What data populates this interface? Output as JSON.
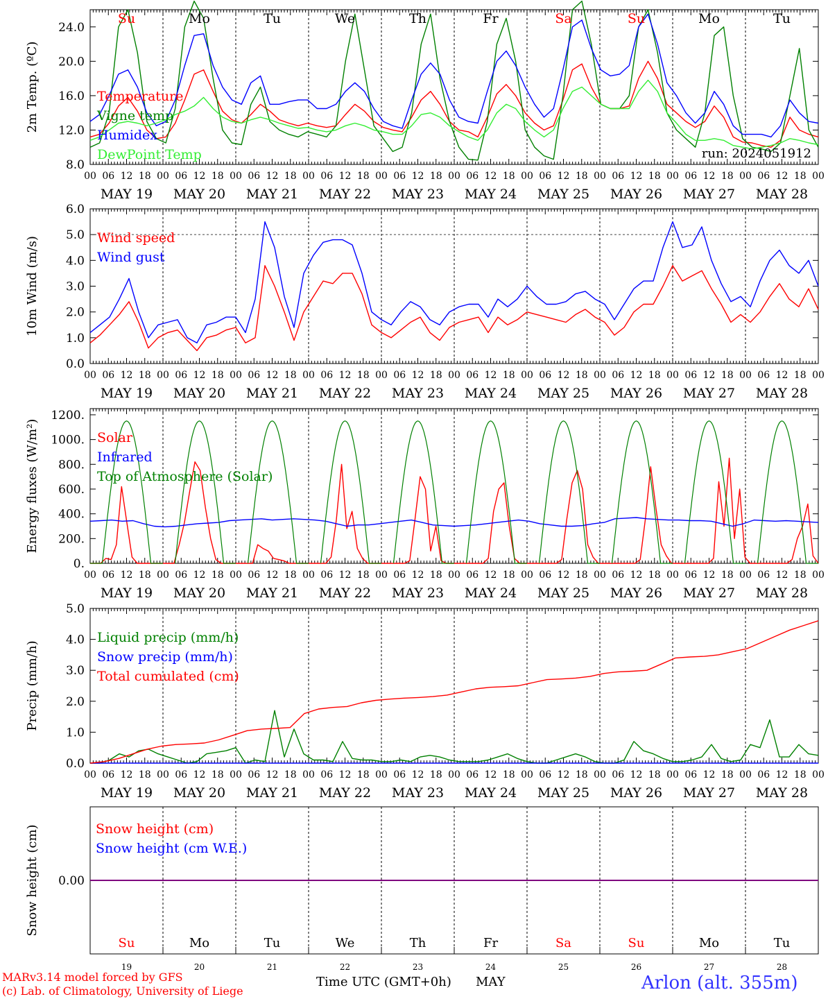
{
  "page": {
    "credit_line1": "MARv3.14 model forced by GFS",
    "credit_line2": "(c) Lab. of Climatology, University of Liege",
    "xaxis_title": "Time UTC (GMT+0h)",
    "month_label": "MAY",
    "station_label": "Arlon (alt. 355m)"
  },
  "colors": {
    "red": "#ff0000",
    "dark_green": "#008000",
    "light_green": "#33ee33",
    "blue": "#0000ff",
    "purple": "#7f007f",
    "axis": "#000000"
  },
  "time_axis": {
    "hour_ticks": [
      "00",
      "06",
      "12",
      "18"
    ],
    "final_tick": "00",
    "date_labels": [
      "MAY 19",
      "MAY 20",
      "MAY 21",
      "MAY 22",
      "MAY 23",
      "MAY 24",
      "MAY 25",
      "MAY 26",
      "MAY 27",
      "MAY 28"
    ],
    "day_names": [
      "Su",
      "Mo",
      "Tu",
      "We",
      "Th",
      "Fr",
      "Sa",
      "Su",
      "Mo",
      "Tu"
    ],
    "day_numbers": [
      "19",
      "20",
      "21",
      "22",
      "23",
      "24",
      "25",
      "26",
      "27",
      "28"
    ],
    "weekend": [
      true,
      false,
      false,
      false,
      false,
      false,
      true,
      true,
      false,
      false
    ]
  },
  "chart_data": [
    {
      "type": "line",
      "ylabel": "2m Temp. (ºC)",
      "ylim": [
        8,
        26
      ],
      "yticks": [
        "8.0",
        "12.0",
        "16.0",
        "20.0",
        "24.0"
      ],
      "annotation": "run: 2024051912",
      "series": [
        {
          "name": "Temperature",
          "color": "red",
          "values": [
            11.2,
            11.5,
            12.8,
            14.8,
            15.8,
            14.2,
            12.0,
            11.0,
            11.2,
            12.8,
            15.5,
            18.5,
            19.0,
            16.5,
            14.2,
            13.2,
            12.8,
            13.8,
            15.0,
            14.2,
            13.2,
            12.8,
            12.5,
            12.8,
            12.5,
            12.3,
            12.5,
            13.8,
            15.0,
            14.2,
            13.0,
            12.3,
            12.0,
            11.8,
            13.5,
            15.5,
            16.5,
            15.0,
            13.0,
            12.0,
            11.8,
            11.2,
            13.5,
            16.2,
            17.3,
            16.0,
            14.0,
            12.8,
            12.0,
            12.5,
            15.5,
            19.0,
            19.7,
            17.0,
            15.0,
            14.5,
            14.5,
            14.8,
            18.0,
            20.0,
            18.0,
            15.0,
            14.0,
            13.0,
            12.3,
            13.0,
            14.8,
            13.5,
            11.2,
            10.6,
            10.5,
            10.2,
            10.0,
            10.8,
            13.5,
            12.0,
            11.5,
            11.2
          ]
        },
        {
          "name": "Vigne temp",
          "color": "dark_green",
          "values": [
            10.0,
            10.5,
            14.0,
            24.0,
            26.0,
            21.0,
            13.0,
            11.0,
            10.5,
            14.5,
            24.0,
            27.0,
            25.0,
            18.0,
            12.0,
            10.5,
            10.3,
            15.0,
            17.0,
            13.0,
            12.0,
            11.5,
            11.2,
            11.8,
            11.5,
            11.2,
            12.5,
            20.0,
            25.5,
            19.0,
            12.5,
            11.0,
            9.5,
            10.0,
            14.0,
            22.0,
            25.5,
            18.0,
            13.0,
            10.0,
            8.6,
            8.5,
            13.0,
            22.0,
            25.0,
            20.0,
            12.0,
            10.0,
            9.0,
            8.6,
            16.0,
            26.0,
            27.0,
            22.0,
            15.0,
            14.5,
            14.5,
            16.0,
            24.0,
            26.0,
            21.0,
            14.0,
            12.0,
            11.0,
            10.0,
            14.0,
            23.0,
            24.0,
            16.0,
            11.0,
            10.0,
            9.8,
            9.5,
            10.5,
            16.0,
            21.5,
            12.0,
            10.0
          ]
        },
        {
          "name": "Humidex",
          "color": "blue",
          "values": [
            13.0,
            13.8,
            16.0,
            18.5,
            19.0,
            17.0,
            14.0,
            12.5,
            13.0,
            15.5,
            19.5,
            23.0,
            23.2,
            19.5,
            17.0,
            15.5,
            15.0,
            17.5,
            18.3,
            15.0,
            15.0,
            15.3,
            15.5,
            15.5,
            14.5,
            14.5,
            15.0,
            16.5,
            17.5,
            16.5,
            14.5,
            13.0,
            12.5,
            12.2,
            15.5,
            18.5,
            19.8,
            18.5,
            15.5,
            13.5,
            13.0,
            12.8,
            16.5,
            20.0,
            21.2,
            19.5,
            17.0,
            15.0,
            13.5,
            14.5,
            19.0,
            24.0,
            24.8,
            21.5,
            19.0,
            18.3,
            18.5,
            19.5,
            24.0,
            25.5,
            22.0,
            17.5,
            16.0,
            14.0,
            12.8,
            14.0,
            16.5,
            15.0,
            12.5,
            11.5,
            11.5,
            11.5,
            11.2,
            12.5,
            15.5,
            14.0,
            13.0,
            12.8
          ]
        },
        {
          "name": "DewPoint Temp",
          "color": "light_green",
          "values": [
            10.8,
            11.2,
            12.0,
            12.8,
            13.0,
            12.8,
            12.5,
            12.8,
            13.2,
            13.8,
            14.2,
            14.8,
            15.8,
            14.5,
            13.5,
            13.0,
            12.8,
            13.2,
            13.5,
            13.2,
            12.8,
            12.5,
            12.2,
            12.3,
            12.0,
            11.8,
            12.0,
            12.5,
            12.8,
            12.5,
            12.0,
            11.8,
            11.5,
            11.5,
            12.5,
            13.8,
            14.0,
            13.5,
            12.5,
            11.8,
            11.2,
            10.8,
            12.0,
            14.0,
            15.0,
            14.5,
            13.0,
            12.0,
            11.2,
            12.0,
            14.5,
            16.5,
            17.0,
            16.0,
            15.0,
            14.5,
            14.5,
            14.5,
            16.5,
            17.8,
            16.5,
            14.0,
            12.8,
            11.5,
            10.8,
            10.8,
            11.0,
            10.8,
            10.2,
            10.0,
            9.8,
            10.0,
            10.2,
            10.5,
            11.0,
            10.8,
            10.5,
            10.3
          ]
        }
      ]
    },
    {
      "type": "line",
      "ylabel": "10m Wind (m/s)",
      "ylim": [
        0,
        6
      ],
      "yticks": [
        "0.0",
        "1.0",
        "2.0",
        "3.0",
        "4.0",
        "5.0",
        "6.0"
      ],
      "reference_line": 5,
      "series": [
        {
          "name": "Wind speed",
          "color": "red",
          "values": [
            0.8,
            1.1,
            1.5,
            1.9,
            2.4,
            1.6,
            0.6,
            1.0,
            1.2,
            1.3,
            0.9,
            0.5,
            1.0,
            1.1,
            1.3,
            1.4,
            0.8,
            1.0,
            3.8,
            3.0,
            2.0,
            0.9,
            2.0,
            2.6,
            3.2,
            3.1,
            3.5,
            3.5,
            2.7,
            1.5,
            1.2,
            1.0,
            1.3,
            1.6,
            1.8,
            1.2,
            0.9,
            1.4,
            1.6,
            1.7,
            1.8,
            1.2,
            1.8,
            1.5,
            1.7,
            2.0,
            1.9,
            1.8,
            1.7,
            1.6,
            1.9,
            2.1,
            1.8,
            1.6,
            1.1,
            1.4,
            2.0,
            2.3,
            2.3,
            3.0,
            3.8,
            3.2,
            3.4,
            3.6,
            2.9,
            2.3,
            1.6,
            1.9,
            1.6,
            2.0,
            2.6,
            3.1,
            2.5,
            2.2,
            2.9,
            2.1
          ]
        },
        {
          "name": "Wind gust",
          "color": "blue",
          "values": [
            1.2,
            1.5,
            1.8,
            2.5,
            3.3,
            2.0,
            1.0,
            1.5,
            1.6,
            1.7,
            1.0,
            0.8,
            1.5,
            1.6,
            1.8,
            1.8,
            1.2,
            2.5,
            5.5,
            4.5,
            2.6,
            1.4,
            3.5,
            4.2,
            4.7,
            4.8,
            4.8,
            4.6,
            3.5,
            2.0,
            1.7,
            1.5,
            2.0,
            2.4,
            2.2,
            1.7,
            1.5,
            2.0,
            2.2,
            2.3,
            2.3,
            1.8,
            2.5,
            2.2,
            2.5,
            3.0,
            2.6,
            2.3,
            2.3,
            2.4,
            2.7,
            2.8,
            2.5,
            2.3,
            1.7,
            2.3,
            2.9,
            3.2,
            3.2,
            4.5,
            5.5,
            4.5,
            4.6,
            5.3,
            4.0,
            3.1,
            2.4,
            2.6,
            2.2,
            3.2,
            4.0,
            4.4,
            3.8,
            3.5,
            4.0,
            3.0
          ]
        }
      ]
    },
    {
      "type": "line",
      "ylabel": "Energy fluxes (W/m²)",
      "ylim": [
        0,
        1250
      ],
      "yticks": [
        "0.",
        "200.",
        "400.",
        "600.",
        "800.",
        "1000.",
        "1200."
      ],
      "series": [
        {
          "name": "Solar",
          "color": "red",
          "values": [
            0,
            0,
            0,
            40,
            30,
            150,
            620,
            330,
            50,
            0,
            0,
            0,
            0,
            0,
            0,
            0,
            0,
            150,
            330,
            580,
            820,
            750,
            450,
            200,
            30,
            0,
            0,
            0,
            0,
            0,
            0,
            0,
            150,
            120,
            100,
            40,
            30,
            20,
            0,
            0,
            0,
            0,
            0,
            0,
            0,
            0,
            50,
            350,
            800,
            280,
            420,
            120,
            40,
            0,
            0,
            0,
            0,
            0,
            0,
            0,
            0,
            20,
            350,
            700,
            600,
            100,
            300,
            20,
            0,
            0,
            0,
            0,
            0,
            0,
            0,
            0,
            40,
            420,
            600,
            650,
            300,
            40,
            0,
            0,
            0,
            0,
            0,
            0,
            0,
            0,
            30,
            360,
            650,
            750,
            600,
            150,
            50,
            0,
            0,
            0,
            0,
            0,
            0,
            0,
            0,
            30,
            360,
            780,
            450,
            150,
            60,
            0,
            0,
            0,
            0,
            0,
            0,
            0,
            0,
            40,
            660,
            300,
            850,
            200,
            600,
            50,
            0,
            0,
            0,
            0,
            0,
            0,
            0,
            0,
            30,
            200,
            300,
            480,
            60,
            0
          ]
        },
        {
          "name": "Infrared",
          "color": "blue",
          "values": [
            340,
            345,
            350,
            340,
            345,
            320,
            300,
            295,
            300,
            310,
            320,
            325,
            330,
            345,
            350,
            355,
            360,
            350,
            355,
            360,
            355,
            350,
            340,
            320,
            300,
            310,
            310,
            320,
            330,
            340,
            350,
            330,
            310,
            305,
            300,
            305,
            310,
            320,
            330,
            340,
            350,
            340,
            320,
            310,
            300,
            300,
            305,
            320,
            330,
            360,
            365,
            370,
            360,
            355,
            350,
            350,
            345,
            345,
            340,
            320,
            300,
            320,
            350,
            345,
            340,
            345,
            340,
            335,
            330
          ]
        },
        {
          "name": "Top of Atmosphere (Solar)",
          "color": "dark_green",
          "values": [
            1150,
            1150,
            1150,
            1150,
            1150,
            1150,
            1150,
            1150,
            1150,
            1150
          ]
        }
      ]
    },
    {
      "type": "line",
      "ylabel": "Precip (mm/h)",
      "ylim": [
        0,
        5
      ],
      "yticks": [
        "0.0",
        "1.0",
        "2.0",
        "3.0",
        "4.0",
        "5.0"
      ],
      "series": [
        {
          "name": "Liquid precip (mm/h)",
          "color": "dark_green",
          "values": [
            0,
            0,
            0.1,
            0.3,
            0.2,
            0.4,
            0.45,
            0.3,
            0.2,
            0.1,
            0.0,
            0.05,
            0.3,
            0.35,
            0.4,
            0.5,
            0.0,
            0.1,
            0.05,
            1.7,
            0.2,
            1.1,
            0.3,
            0.1,
            0.1,
            0.05,
            0.7,
            0.15,
            0.1,
            0.1,
            0.05,
            0.05,
            0.1,
            0.05,
            0.2,
            0.25,
            0.2,
            0.1,
            0.05,
            0.05,
            0.05,
            0.1,
            0.2,
            0.3,
            0.15,
            0.05,
            0.0,
            0.0,
            0.1,
            0.2,
            0.3,
            0.2,
            0.05,
            0.0,
            0.0,
            0.1,
            0.7,
            0.4,
            0.3,
            0.15,
            0.05,
            0.05,
            0.1,
            0.2,
            0.6,
            0.15,
            0.05,
            0.1,
            0.6,
            0.5,
            1.4,
            0.2,
            0.2,
            0.6,
            0.3,
            0.25
          ]
        },
        {
          "name": "Snow precip (mm/h)",
          "color": "blue",
          "values": [
            0,
            0,
            0,
            0,
            0,
            0,
            0,
            0,
            0,
            0
          ]
        },
        {
          "name": "Total cumulated (cm)",
          "color": "red",
          "values": [
            0.0,
            0.05,
            0.15,
            0.3,
            0.45,
            0.55,
            0.6,
            0.62,
            0.65,
            0.75,
            0.9,
            1.05,
            1.1,
            1.12,
            1.15,
            1.6,
            1.75,
            1.8,
            1.83,
            1.95,
            2.03,
            2.07,
            2.1,
            2.12,
            2.15,
            2.2,
            2.3,
            2.4,
            2.45,
            2.47,
            2.5,
            2.6,
            2.7,
            2.72,
            2.75,
            2.8,
            2.9,
            2.95,
            2.97,
            3.0,
            3.2,
            3.4,
            3.43,
            3.45,
            3.5,
            3.6,
            3.7,
            3.9,
            4.1,
            4.3,
            4.45,
            4.6
          ]
        }
      ]
    },
    {
      "type": "line",
      "ylabel": "Snow height (cm)",
      "ylim": [
        -1,
        1
      ],
      "yticks": [
        "0.00"
      ],
      "series": [
        {
          "name": "Snow height (cm)",
          "color": "red",
          "values": [
            0,
            0,
            0,
            0,
            0,
            0,
            0,
            0,
            0,
            0,
            0
          ]
        },
        {
          "name": "Snow height (cm W.E.)",
          "color": "blue",
          "values": [
            0,
            0,
            0,
            0,
            0,
            0,
            0,
            0,
            0,
            0,
            0
          ]
        }
      ]
    }
  ]
}
